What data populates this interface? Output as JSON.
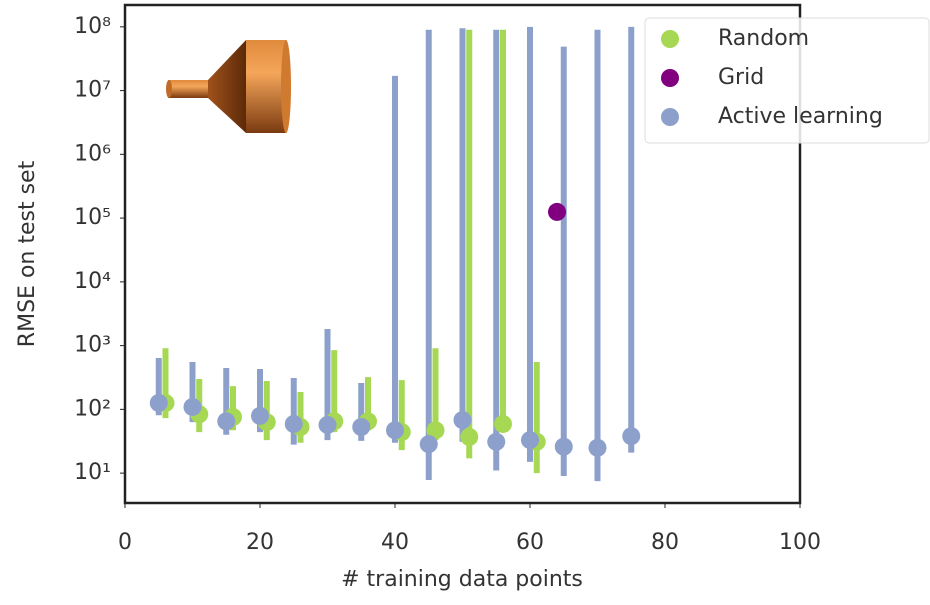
{
  "chart_data": {
    "type": "scatter",
    "x_label": "# training data points",
    "y_label": "RMSE on test set",
    "xlim": [
      0,
      100
    ],
    "xticks": [
      0,
      20,
      40,
      60,
      80,
      100
    ],
    "ylim": [
      3.4,
      220000000
    ],
    "log_y": true,
    "yticks": [
      {
        "value": 10,
        "label": "10¹"
      },
      {
        "value": 100,
        "label": "10²"
      },
      {
        "value": 1000,
        "label": "10³"
      },
      {
        "value": 10000,
        "label": "10⁴"
      },
      {
        "value": 100000,
        "label": "10⁵"
      },
      {
        "value": 1000000,
        "label": "10⁶"
      },
      {
        "value": 10000000,
        "label": "10⁷"
      },
      {
        "value": 100000000,
        "label": "10⁸"
      }
    ],
    "legend_loc": "upper right",
    "series": [
      {
        "name": "Random",
        "color": "#a6d854",
        "x": [
          6,
          11,
          16,
          21,
          26,
          31,
          36,
          41,
          46,
          51,
          56,
          61
        ],
        "values": [
          126,
          84,
          76,
          63,
          53,
          65,
          65,
          44,
          47,
          37,
          59,
          31
        ],
        "lower": [
          73,
          44,
          47,
          33,
          30,
          44,
          47,
          23,
          33,
          17,
          44,
          10
        ],
        "upper": [
          910,
          300,
          232,
          278,
          187,
          850,
          321,
          288,
          910,
          90000000,
          90000000,
          553
        ]
      },
      {
        "name": "Grid",
        "color": "#800080",
        "x": [
          64
        ],
        "values": [
          125000
        ]
      },
      {
        "name": "Active learning",
        "color": "#8da0cb",
        "x": [
          5,
          10,
          15,
          20,
          25,
          30,
          35,
          40,
          45,
          50,
          55,
          60,
          65,
          70,
          75
        ],
        "values": [
          126,
          109,
          65,
          79,
          59,
          57,
          53,
          47,
          28.5,
          68,
          31,
          33,
          26,
          25,
          38
        ],
        "lower": [
          81,
          63,
          40,
          44,
          28,
          33,
          32,
          30,
          7.8,
          31,
          11,
          15,
          9,
          7.5,
          21
        ],
        "upper": [
          638,
          553,
          445,
          429,
          310,
          1820,
          259,
          17000000,
          90000000,
          95000000,
          90000000,
          100000000,
          49000000,
          90000000,
          100000000
        ]
      }
    ]
  }
}
